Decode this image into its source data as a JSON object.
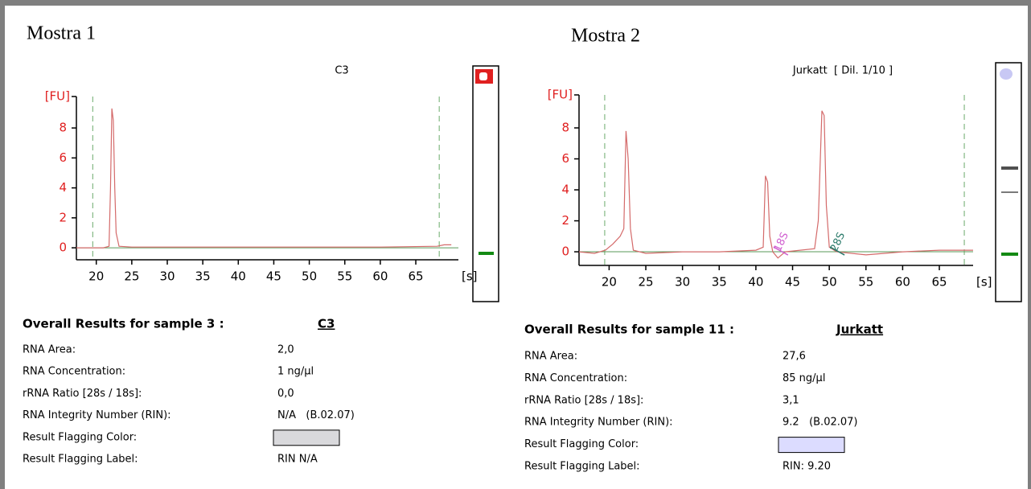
{
  "panels": [
    {
      "label": "Mostra 1",
      "results": {
        "title": "Overall Results for sample 3 :",
        "sample": "C3",
        "rows": [
          {
            "label": "RNA Area:",
            "value": "2,0"
          },
          {
            "label": "RNA Concentration:",
            "value": "1 ng/µl"
          },
          {
            "label": "rRNA Ratio [28s / 18s]:",
            "value": "0,0"
          },
          {
            "label": "RNA Integrity Number (RIN):",
            "value": "N/A   (B.02.07)"
          },
          {
            "label": "Result Flagging Color:"
          },
          {
            "label": "Result Flagging Label:",
            "value": "RIN N/A"
          }
        ],
        "flag_color": "#d9d9dc"
      }
    },
    {
      "label": "Mostra 2",
      "results": {
        "title": "Overall Results for sample 11 :",
        "sample": "Jurkatt",
        "rows": [
          {
            "label": "RNA Area:",
            "value": "27,6"
          },
          {
            "label": "RNA Concentration:",
            "value": "85 ng/µl"
          },
          {
            "label": "rRNA Ratio [28s / 18s]:",
            "value": "3,1"
          },
          {
            "label": "RNA Integrity Number (RIN):",
            "value": "9.2   (B.02.07)"
          },
          {
            "label": "Result Flagging Color:"
          },
          {
            "label": "Result Flagging Label:",
            "value": "RIN: 9.20"
          }
        ],
        "flag_color": "#dcdcff"
      }
    }
  ],
  "chart_data": [
    {
      "type": "line",
      "title": "C3",
      "y_label": "[FU]",
      "x_label": "[s]",
      "x": [
        17.2,
        19,
        21,
        21.8,
        22.0,
        22.2,
        22.4,
        22.6,
        22.8,
        23.2,
        25,
        30,
        40,
        50,
        60,
        68,
        69,
        70
      ],
      "series": [
        {
          "color": "#d46a6a",
          "values": [
            0,
            0,
            0,
            0.1,
            4,
            9.3,
            8.5,
            4,
            1,
            0.1,
            0.05,
            0.05,
            0.05,
            0.05,
            0.05,
            0.1,
            0.2,
            0.2
          ]
        }
      ],
      "baseline": 0,
      "baseline_color": "#5a9a5a",
      "markers": [
        19.5,
        68.3
      ],
      "marker_color": "#6aaa6a",
      "xlim": [
        17.2,
        71
      ],
      "ylim": [
        -0.8,
        10.1
      ],
      "xticks": [
        20,
        25,
        30,
        35,
        40,
        45,
        50,
        55,
        60,
        65
      ],
      "yticks": [
        0,
        2,
        4,
        6,
        8
      ],
      "annotations": []
    },
    {
      "type": "line",
      "title": "Jurkatt  [ Dil. 1/10 ]",
      "y_label": "[FU]",
      "x_label": "[s]",
      "x": [
        15.9,
        18,
        19.5,
        20.5,
        21.5,
        22.0,
        22.3,
        22.6,
        22.9,
        23.3,
        25,
        30,
        35,
        40,
        41,
        41.3,
        41.6,
        41.9,
        42.3,
        43,
        44,
        48,
        48.5,
        49,
        49.3,
        49.6,
        50,
        51,
        55,
        60,
        65,
        69.6
      ],
      "series": [
        {
          "color": "#d46a6a",
          "values": [
            0,
            -0.1,
            0.1,
            0.5,
            1,
            1.5,
            7.8,
            6,
            1.5,
            0.1,
            -0.1,
            0,
            0,
            0.1,
            0.3,
            4.9,
            4.5,
            1,
            0,
            -0.4,
            0,
            0.2,
            2,
            9.1,
            8.8,
            3,
            0.3,
            0,
            -0.2,
            0,
            0.1,
            0.1
          ]
        }
      ],
      "baseline": 0,
      "baseline_color": "#5a9a5a",
      "markers": [
        19.4,
        68.4
      ],
      "marker_color": "#6aaa6a",
      "xlim": [
        15.9,
        69.6
      ],
      "ylim": [
        -0.88,
        10.13
      ],
      "xticks": [
        20,
        25,
        30,
        35,
        40,
        45,
        50,
        55,
        60,
        65
      ],
      "yticks": [
        0,
        2,
        4,
        6,
        8
      ],
      "annotations": [
        {
          "text": "18S",
          "x": 43.5,
          "color": "#d060d0"
        },
        {
          "text": "28S",
          "x": 51.2,
          "color": "#2a7a6a"
        }
      ]
    }
  ]
}
